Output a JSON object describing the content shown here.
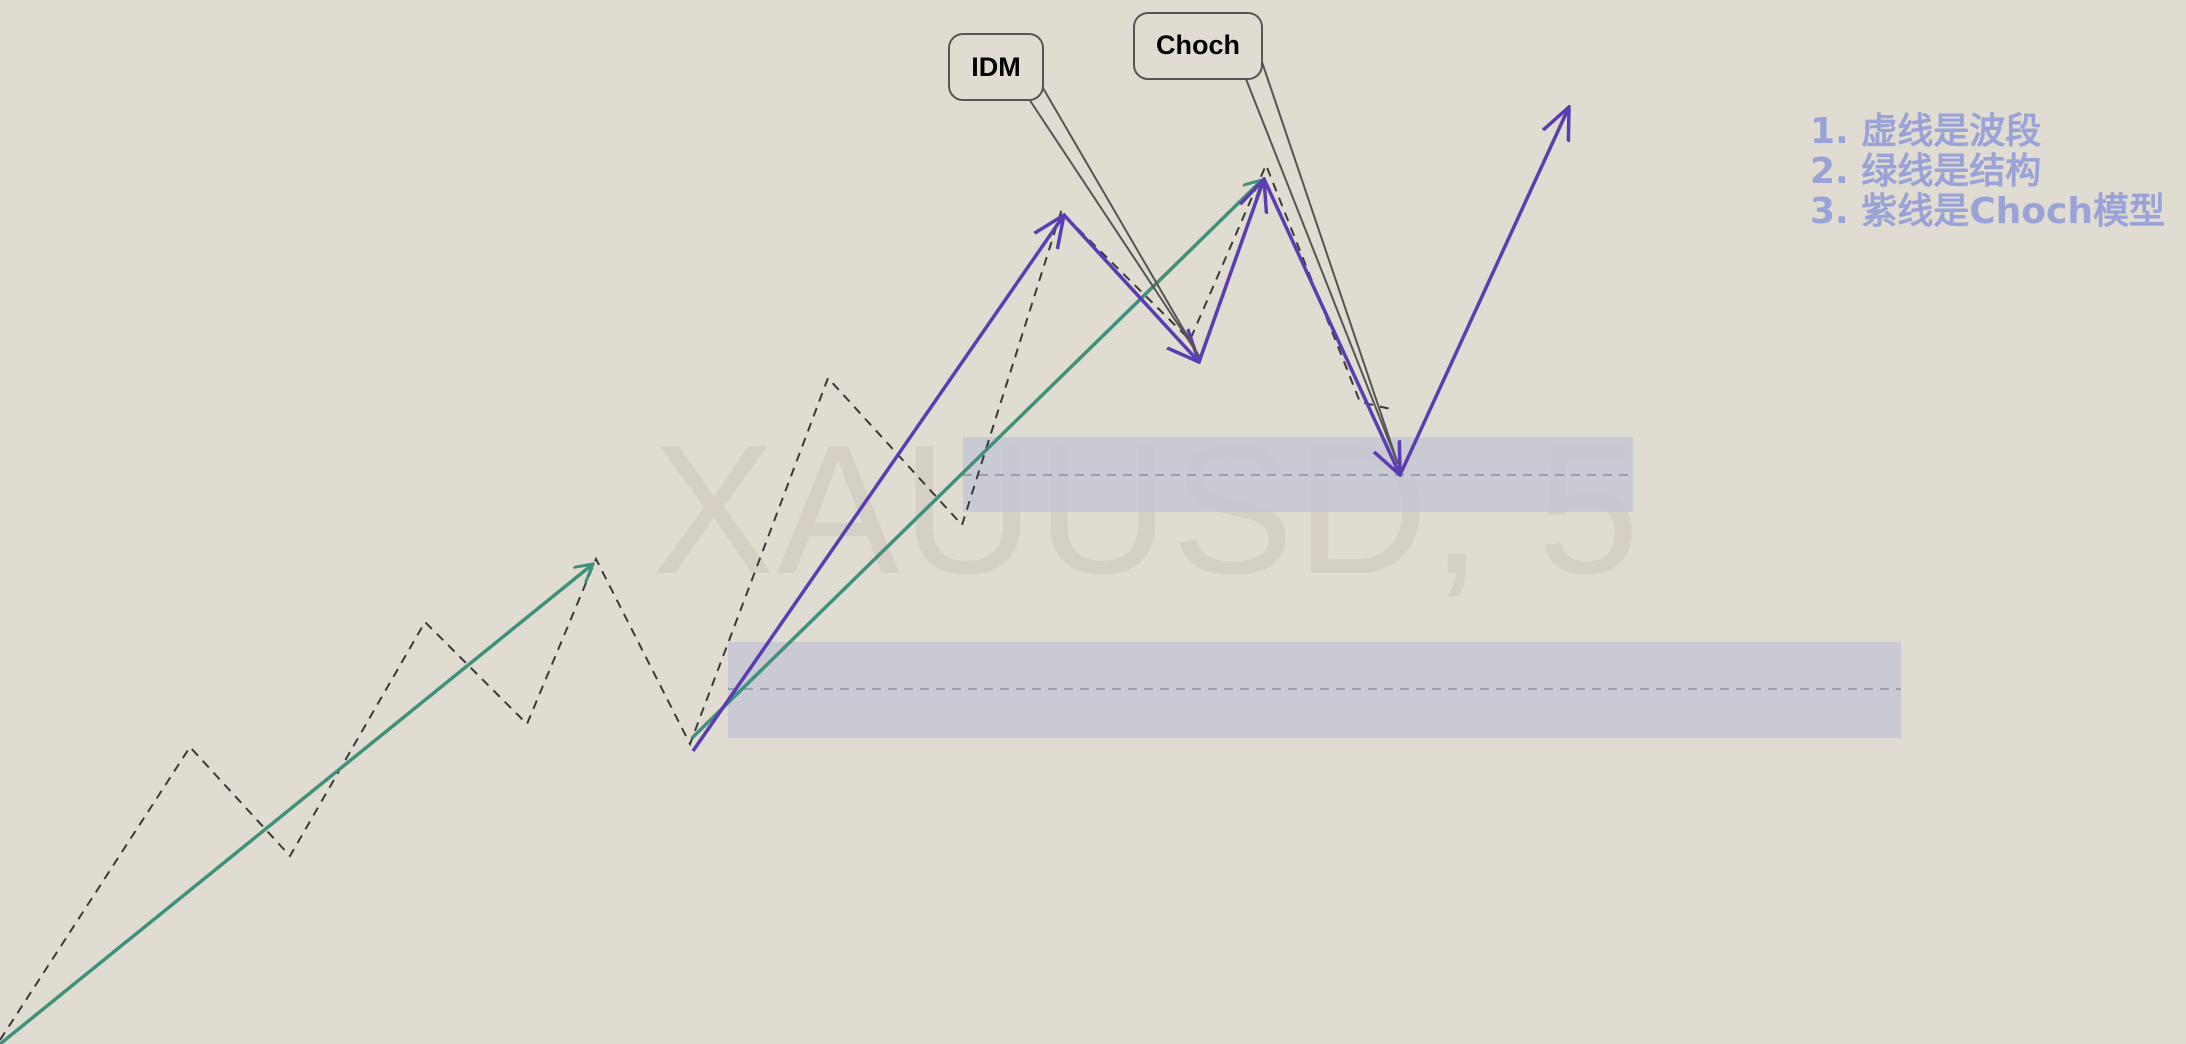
{
  "watermark": "XAUUSD, 5",
  "callouts": {
    "idm": "IDM",
    "choch": "Choch"
  },
  "legend": {
    "line1": "1. 虚线是波段",
    "line2": "2. 绿线是结构",
    "line3": "3. 紫线是Choch模型"
  },
  "colors": {
    "background": "#E0DCD1",
    "zone_fill": "#C6C7D5",
    "structure_line": "#3F9179",
    "choch_line": "#5B3DB3",
    "swing_line": "#3A3A3A",
    "legend_text": "#9AA3D8",
    "callout_border": "#555555",
    "callout_fill": "#E0DCD1"
  },
  "chart_data": {
    "type": "line",
    "series": [
      {
        "style": "dashed-swing"
      },
      {
        "style": "structure"
      },
      {
        "style": "choch-model"
      }
    ]
  }
}
